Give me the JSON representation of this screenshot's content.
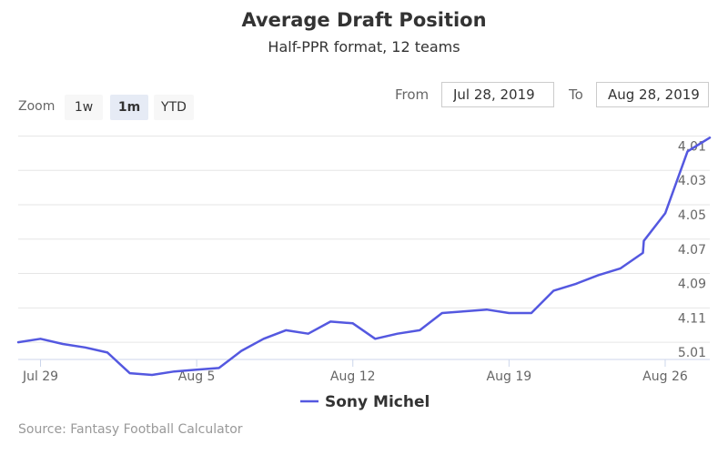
{
  "chart_data": {
    "type": "line",
    "title": "Average Draft Position",
    "subtitle": "Half-PPR format, 12 teams",
    "xlabel": "",
    "ylabel": "",
    "y_axis_reversed": true,
    "ylim": [
      4.005,
      5.02
    ],
    "y_ticks": [
      4.01,
      4.03,
      4.05,
      4.07,
      4.09,
      4.11,
      5.01
    ],
    "x_tick_labels": [
      "Jul 29",
      "Aug 5",
      "Aug 12",
      "Aug 19",
      "Aug 26"
    ],
    "grid": true,
    "legend": "bottom-center",
    "series": [
      {
        "name": "Sony Michel",
        "color": "#5458e0",
        "points": [
          {
            "x": "2019-07-28",
            "y": 5.01
          },
          {
            "x": "2019-07-29",
            "y": 5.008
          },
          {
            "x": "2019-07-30",
            "y": 5.011
          },
          {
            "x": "2019-07-31",
            "y": 5.013
          },
          {
            "x": "2019-08-01",
            "y": 5.016
          },
          {
            "x": "2019-08-02",
            "y": 5.028
          },
          {
            "x": "2019-08-03",
            "y": 5.029
          },
          {
            "x": "2019-08-04",
            "y": 5.027
          },
          {
            "x": "2019-08-05",
            "y": 5.026
          },
          {
            "x": "2019-08-06",
            "y": 5.025
          },
          {
            "x": "2019-08-07",
            "y": 5.015
          },
          {
            "x": "2019-08-08",
            "y": 5.008
          },
          {
            "x": "2019-08-09",
            "y": 5.003
          },
          {
            "x": "2019-08-10",
            "y": 5.005
          },
          {
            "x": "2019-08-11",
            "y": 4.118
          },
          {
            "x": "2019-08-12",
            "y": 4.119
          },
          {
            "x": "2019-08-13",
            "y": 5.008
          },
          {
            "x": "2019-08-14",
            "y": 5.005
          },
          {
            "x": "2019-08-15",
            "y": 4.123
          },
          {
            "x": "2019-08-16",
            "y": 4.113
          },
          {
            "x": "2019-08-17",
            "y": 4.112
          },
          {
            "x": "2019-08-18",
            "y": 4.111
          },
          {
            "x": "2019-08-19",
            "y": 4.113
          },
          {
            "x": "2019-08-20",
            "y": 4.113
          },
          {
            "x": "2019-08-21",
            "y": 4.1
          },
          {
            "x": "2019-08-22",
            "y": 4.096
          },
          {
            "x": "2019-08-23",
            "y": 4.091
          },
          {
            "x": "2019-08-24",
            "y": 4.087
          },
          {
            "x": "2019-08-25",
            "y": 4.078
          },
          {
            "x": "2019-08-25",
            "y": 4.071
          },
          {
            "x": "2019-08-26",
            "y": 4.055
          },
          {
            "x": "2019-08-27",
            "y": 4.019
          },
          {
            "x": "2019-08-28",
            "y": 4.011
          }
        ]
      }
    ]
  },
  "zoom": {
    "label": "Zoom",
    "buttons": [
      {
        "label": "1w",
        "active": false
      },
      {
        "label": "1m",
        "active": true
      },
      {
        "label": "YTD",
        "active": false
      }
    ]
  },
  "range": {
    "from_label": "From",
    "from_value": "Jul 28, 2019",
    "to_label": "To",
    "to_value": "Aug 28, 2019"
  },
  "credit": "Source: Fantasy Football Calculator"
}
